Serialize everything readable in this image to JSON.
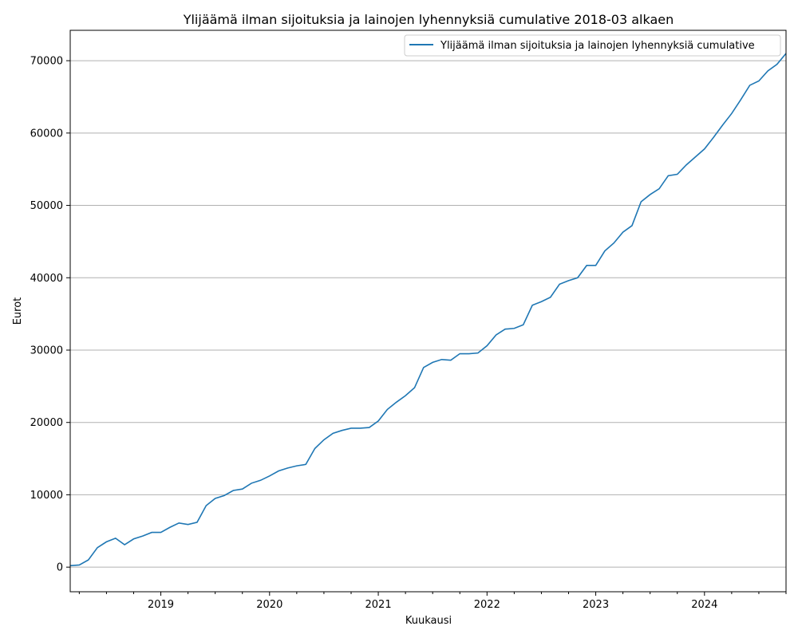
{
  "chart_data": {
    "type": "line",
    "title": "Ylijäämä ilman sijoituksia ja lainojen lyhennyksiä cumulative 2018-03 alkaen",
    "xlabel": "Kuukausi",
    "ylabel": "Eurot",
    "ylim": [
      -3400,
      74200
    ],
    "xlim": [
      "2018-03",
      "2024-10"
    ],
    "grid": "y-major",
    "legend_position": "top-right",
    "x_ticks": [
      "2019",
      "2020",
      "2021",
      "2022",
      "2023",
      "2024"
    ],
    "y_ticks": [
      "0",
      "10000",
      "20000",
      "30000",
      "40000",
      "50000",
      "60000",
      "70000"
    ],
    "colors": {
      "series": "#1f77b4"
    },
    "series": [
      {
        "name": "Ylijäämä ilman sijoituksia ja lainojen lyhennyksiä cumulative",
        "x": [
          "2018-03",
          "2018-04",
          "2018-05",
          "2018-06",
          "2018-07",
          "2018-08",
          "2018-09",
          "2018-10",
          "2018-11",
          "2018-12",
          "2019-01",
          "2019-02",
          "2019-03",
          "2019-04",
          "2019-05",
          "2019-06",
          "2019-07",
          "2019-08",
          "2019-09",
          "2019-10",
          "2019-11",
          "2019-12",
          "2020-01",
          "2020-02",
          "2020-03",
          "2020-04",
          "2020-05",
          "2020-06",
          "2020-07",
          "2020-08",
          "2020-09",
          "2020-10",
          "2020-11",
          "2020-12",
          "2021-01",
          "2021-02",
          "2021-03",
          "2021-04",
          "2021-05",
          "2021-06",
          "2021-07",
          "2021-08",
          "2021-09",
          "2021-10",
          "2021-11",
          "2021-12",
          "2022-01",
          "2022-02",
          "2022-03",
          "2022-04",
          "2022-05",
          "2022-06",
          "2022-07",
          "2022-08",
          "2022-09",
          "2022-10",
          "2022-11",
          "2022-12",
          "2023-01",
          "2023-02",
          "2023-03",
          "2023-04",
          "2023-05",
          "2023-06",
          "2023-07",
          "2023-08",
          "2023-09",
          "2023-10",
          "2023-11",
          "2023-12",
          "2024-01",
          "2024-02",
          "2024-03",
          "2024-04",
          "2024-05",
          "2024-06",
          "2024-07",
          "2024-08",
          "2024-09",
          "2024-10"
        ],
        "values": [
          200,
          300,
          1000,
          2700,
          3500,
          4000,
          3100,
          3900,
          4300,
          4800,
          4800,
          5500,
          6100,
          5900,
          6200,
          8500,
          9500,
          9900,
          10600,
          10800,
          11600,
          12000,
          12600,
          13300,
          13700,
          14000,
          14200,
          16400,
          17600,
          18500,
          18900,
          19200,
          19200,
          19300,
          20200,
          21800,
          22800,
          23700,
          24800,
          27600,
          28300,
          28700,
          28600,
          29500,
          29500,
          29600,
          30600,
          32100,
          32900,
          33000,
          33500,
          36200,
          36700,
          37300,
          39100,
          39600,
          40000,
          41700,
          41700,
          43700,
          44800,
          46300,
          47200,
          50500,
          51500,
          52300,
          54100,
          54300,
          55600,
          56700,
          57800,
          59400,
          61100,
          62700,
          64600,
          66600,
          67200,
          68600,
          69500,
          71000
        ]
      }
    ]
  }
}
